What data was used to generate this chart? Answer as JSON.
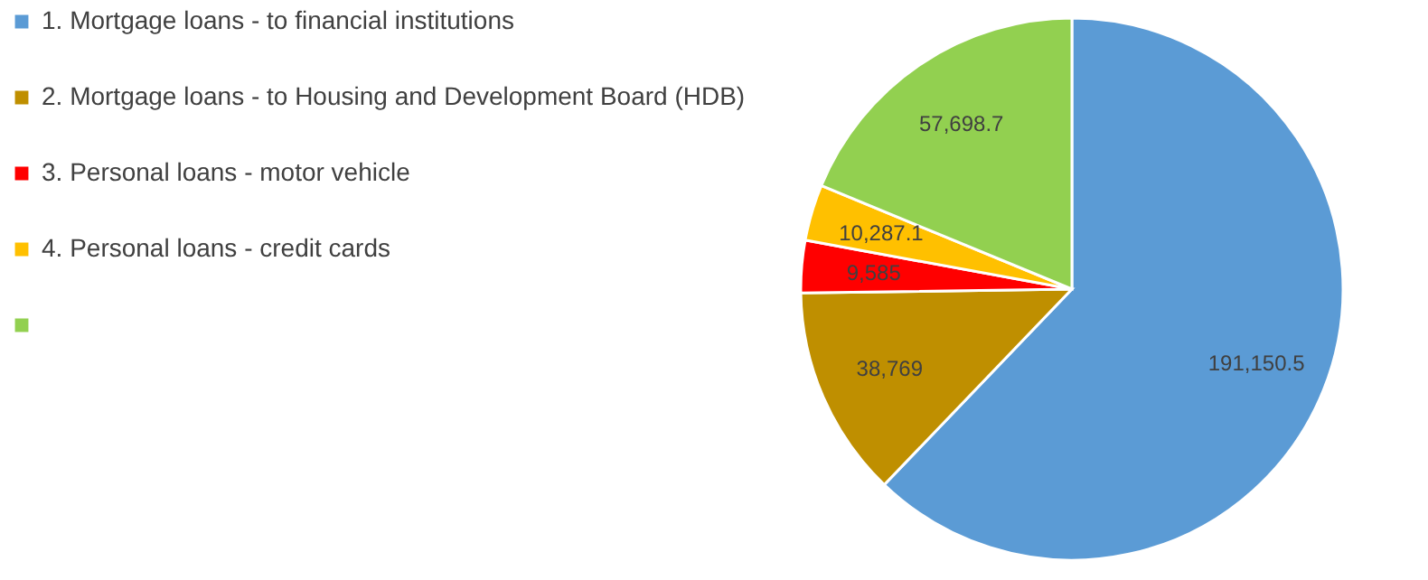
{
  "chart_data": {
    "type": "pie",
    "categories": [
      "1. Mortgage loans - to financial institutions",
      "2. Mortgage loans - to Housing and Development Board (HDB)",
      "3. Personal loans - motor vehicle",
      "4. Personal loans - credit cards",
      null
    ],
    "values": [
      191150.5,
      38769,
      9585,
      10287.1,
      57698.7
    ],
    "colors": [
      "#5b9bd5",
      "#bf8f00",
      "#ff0000",
      "#ffc000",
      "#92d050"
    ],
    "value_labels": [
      "191,150.5",
      "38,769",
      "9,585",
      "10,287.1",
      "57,698.7"
    ],
    "legend": "left"
  }
}
